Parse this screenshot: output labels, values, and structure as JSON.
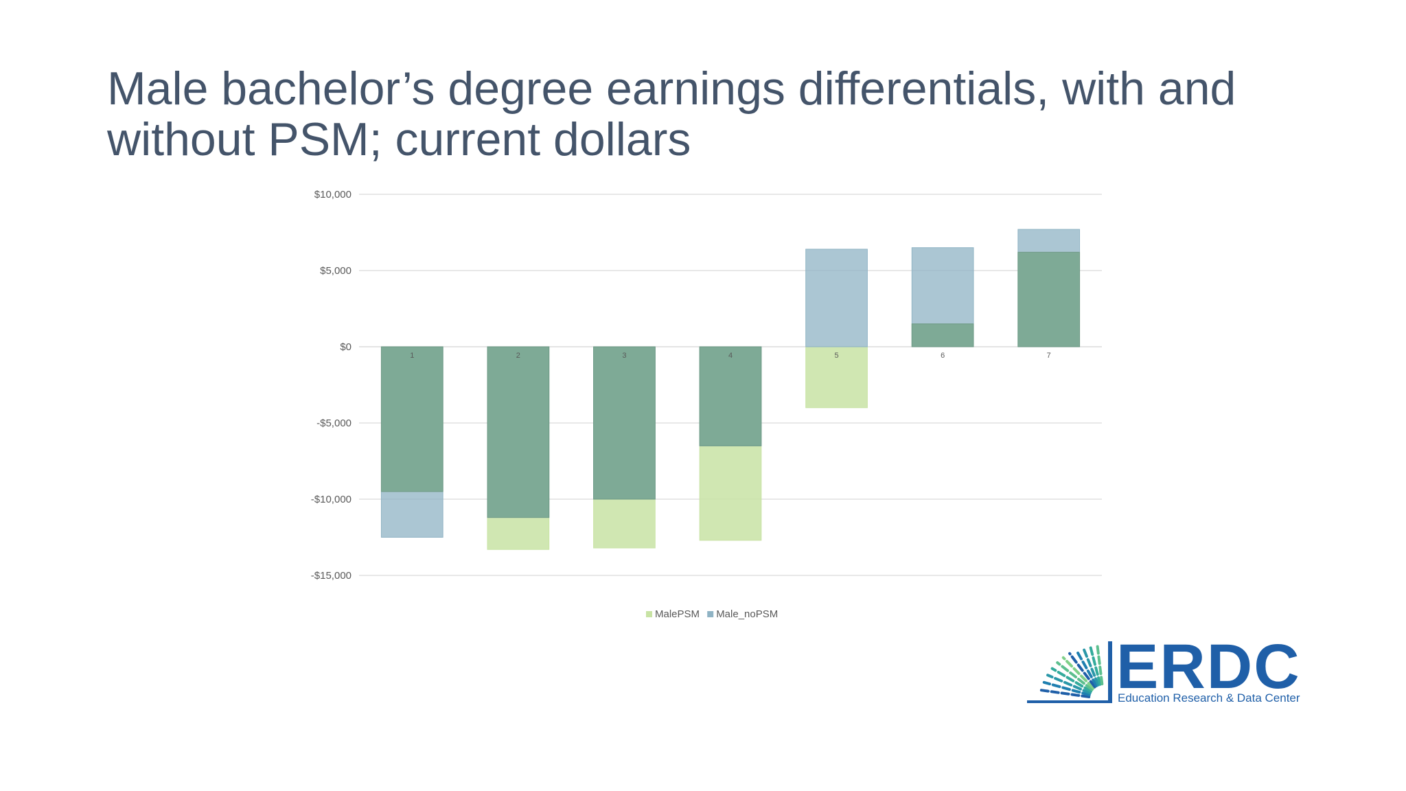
{
  "slide": {
    "title_line1": "Male bachelor’s degree earnings differentials, with and",
    "title_line2": "without PSM; current dollars"
  },
  "chart_data": {
    "type": "bar",
    "categories": [
      "1",
      "2",
      "3",
      "4",
      "5",
      "6",
      "7"
    ],
    "series": [
      {
        "name": "MalePSM",
        "values": [
          -9500,
          -13300,
          -13200,
          -12700,
          -4000,
          1500,
          6200
        ],
        "color": "#c8e3a4"
      },
      {
        "name": "Male_noPSM",
        "values": [
          -12500,
          -11200,
          -10000,
          -6500,
          6400,
          6500,
          7700
        ],
        "color": "#8fb3c4"
      }
    ],
    "overlap_color": "#7eaa96",
    "ylim": [
      -15000,
      10000
    ],
    "yticks": [
      10000,
      5000,
      0,
      -5000,
      -10000,
      -15000
    ],
    "ytick_labels": [
      "$10,000",
      "$5,000",
      "$0",
      "-$5,000",
      "-$10,000",
      "-$15,000"
    ],
    "grid": true,
    "legend_position": "bottom"
  },
  "logo": {
    "name": "ERDC",
    "subtitle": "Education Research & Data Center",
    "color": "#1f5fa8",
    "accent": "#2aa6a0"
  }
}
